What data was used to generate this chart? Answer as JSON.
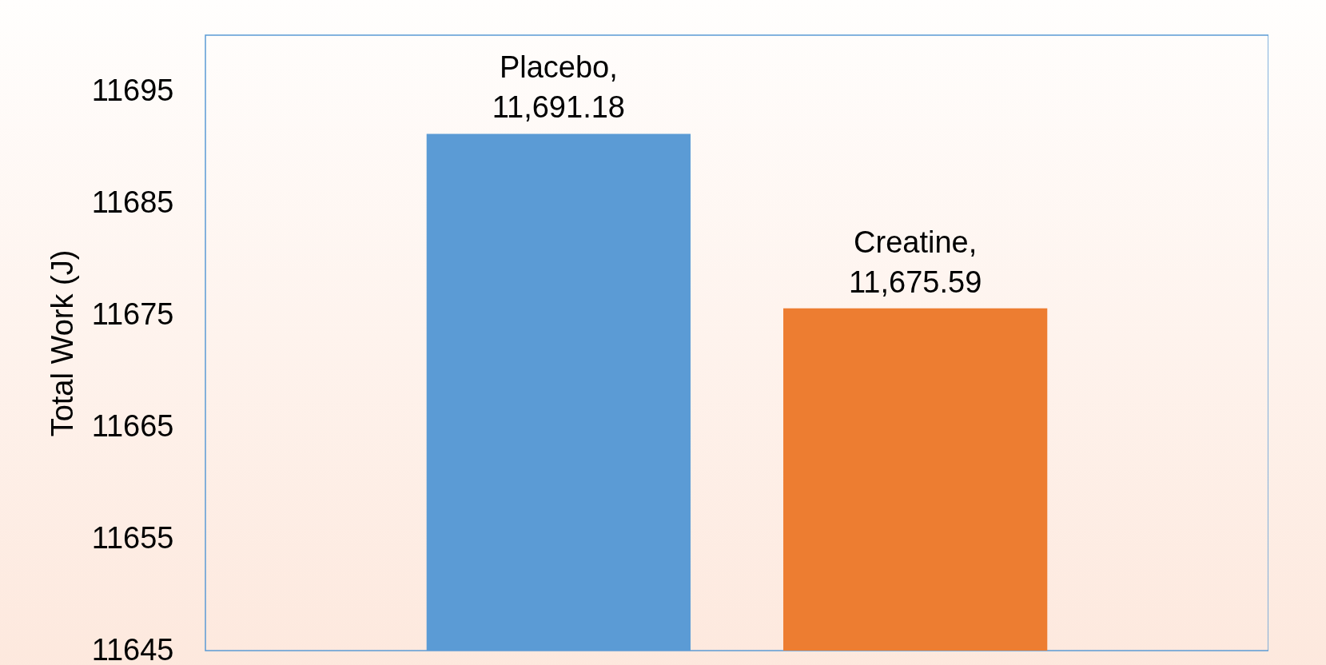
{
  "chart_data": {
    "type": "bar",
    "ylabel": "Total Work (J)",
    "categories": [
      null,
      null
    ],
    "values": [
      11691.18,
      11675.59
    ],
    "colors": [
      "#5b9bd5",
      "#ed7d31"
    ],
    "value_labels": [
      "Placebo, 11,691.18",
      "Creatine, 11,675.59"
    ],
    "ylim": [
      11645,
      11700
    ],
    "yticks": [
      11645,
      11655,
      11665,
      11675,
      11685,
      11695
    ]
  }
}
